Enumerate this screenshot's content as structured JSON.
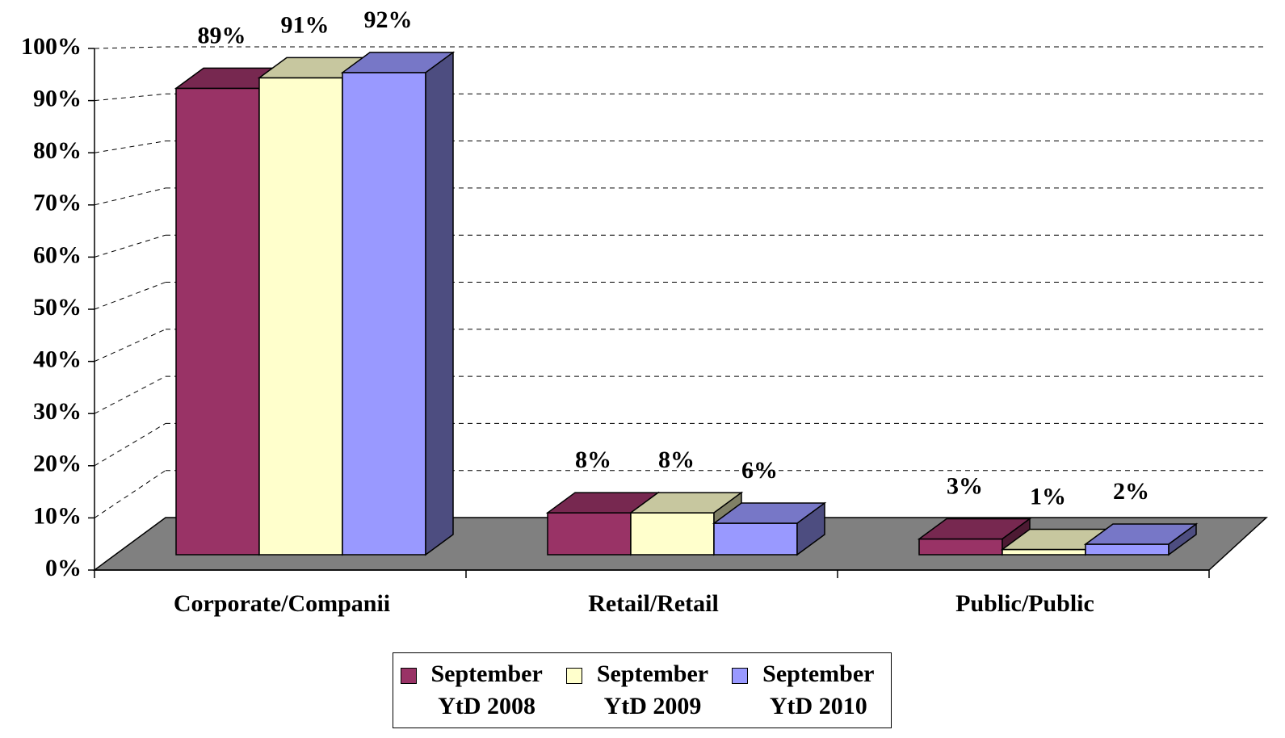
{
  "chart_data": {
    "type": "bar3d",
    "categories": [
      "Corporate/Companii",
      "Retail/Retail",
      "Public/Public"
    ],
    "series": [
      {
        "name": "September YtD 2008",
        "color": "#993366",
        "values": [
          89,
          8,
          3
        ],
        "value_labels": [
          "89%",
          "8%",
          "3%"
        ]
      },
      {
        "name": "September YtD 2009",
        "color": "#FFFFCC",
        "values": [
          91,
          8,
          1
        ],
        "value_labels": [
          "91%",
          "8%",
          "1%"
        ]
      },
      {
        "name": "September YtD 2010",
        "color": "#9999FF",
        "values": [
          92,
          6,
          2
        ],
        "value_labels": [
          "92%",
          "6%",
          "2%"
        ]
      }
    ],
    "ylim": [
      0,
      100
    ],
    "yticks": [
      {
        "value": 0,
        "label": "0%"
      },
      {
        "value": 10,
        "label": "10%"
      },
      {
        "value": 20,
        "label": "20%"
      },
      {
        "value": 30,
        "label": "30%"
      },
      {
        "value": 40,
        "label": "40%"
      },
      {
        "value": 50,
        "label": "50%"
      },
      {
        "value": 60,
        "label": "60%"
      },
      {
        "value": 70,
        "label": "70%"
      },
      {
        "value": 80,
        "label": "80%"
      },
      {
        "value": 90,
        "label": "90%"
      },
      {
        "value": 100,
        "label": "100%"
      }
    ],
    "grid": true,
    "legend": "bottom"
  }
}
